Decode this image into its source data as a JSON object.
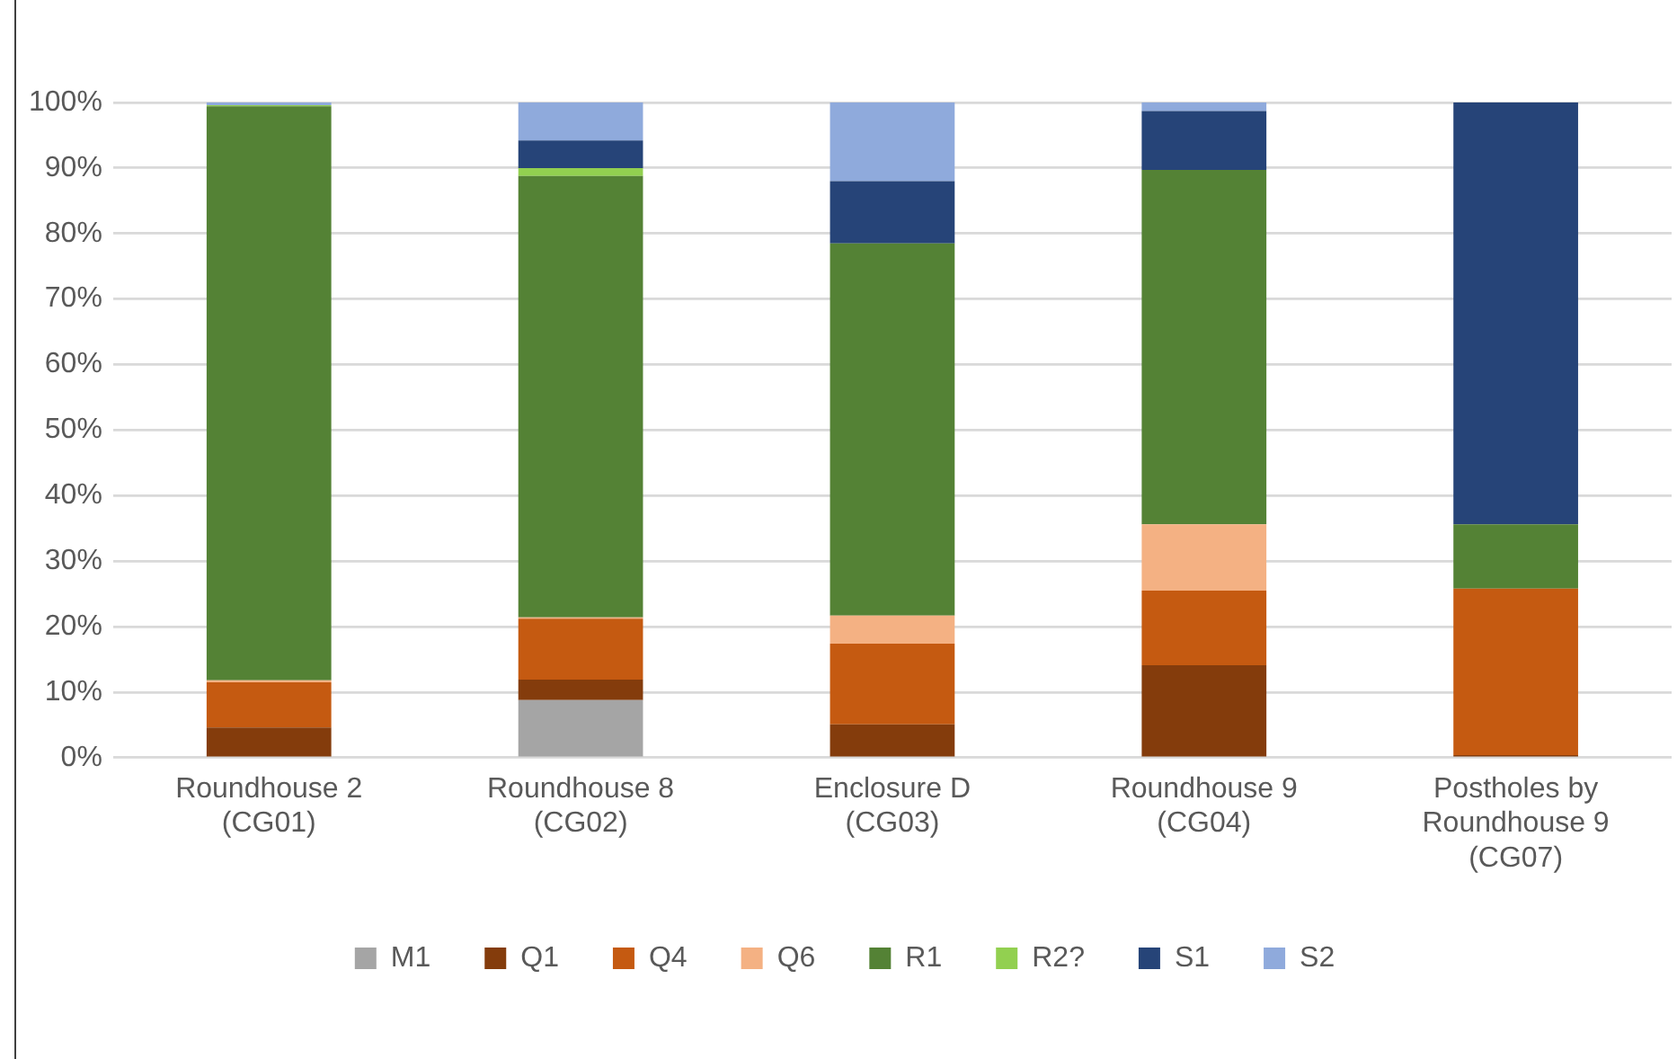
{
  "chart_data": {
    "type": "bar",
    "stacked": true,
    "categories": [
      "Roundhouse 2 (CG01)",
      "Roundhouse 8 (CG02)",
      "Enclosure D (CG03)",
      "Roundhouse 9 (CG04)",
      "Postholes by Roundhouse 9 (CG07)"
    ],
    "series": [
      {
        "name": "M1",
        "color": "#a5a5a5",
        "values": [
          0,
          8.8,
          0,
          0,
          0
        ]
      },
      {
        "name": "Q1",
        "color": "#843c0c",
        "values": [
          4.6,
          3.1,
          5.1,
          14.1,
          0.4
        ]
      },
      {
        "name": "Q4",
        "color": "#c55a11",
        "values": [
          6.9,
          9.3,
          12.3,
          11.4,
          25.4
        ]
      },
      {
        "name": "Q6",
        "color": "#f4b183",
        "values": [
          0.3,
          0.2,
          4.3,
          10.1,
          0
        ]
      },
      {
        "name": "R1",
        "color": "#548235",
        "values": [
          87.6,
          67.4,
          56.8,
          54.1,
          9.8
        ]
      },
      {
        "name": "R2?",
        "color": "#92d050",
        "values": [
          0.2,
          1.2,
          0,
          0,
          0
        ]
      },
      {
        "name": "S1",
        "color": "#264478",
        "values": [
          0,
          4.2,
          9.5,
          9.0,
          64.4
        ]
      },
      {
        "name": "S2",
        "color": "#8faadc",
        "values": [
          0.4,
          5.8,
          12.0,
          1.3,
          0
        ]
      }
    ],
    "ylim": [
      0,
      100
    ],
    "yticks": [
      {
        "value": 0,
        "label": "0%"
      },
      {
        "value": 10,
        "label": "10%"
      },
      {
        "value": 20,
        "label": "20%"
      },
      {
        "value": 30,
        "label": "30%"
      },
      {
        "value": 40,
        "label": "40%"
      },
      {
        "value": 50,
        "label": "50%"
      },
      {
        "value": 60,
        "label": "60%"
      },
      {
        "value": 70,
        "label": "70%"
      },
      {
        "value": 80,
        "label": "80%"
      },
      {
        "value": 90,
        "label": "90%"
      },
      {
        "value": 100,
        "label": "100%"
      }
    ],
    "grid": "y",
    "legend": "bottom"
  }
}
